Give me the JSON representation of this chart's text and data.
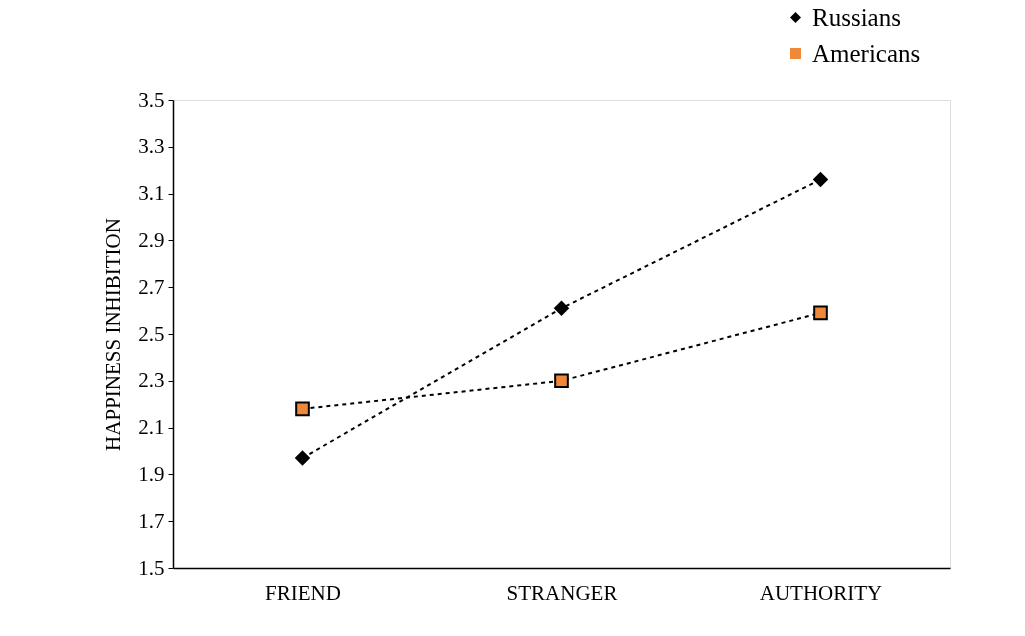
{
  "chart_data": {
    "type": "line",
    "ylabel": "HAPPINESS INHIBITION",
    "categories": [
      "FRIEND",
      "STRANGER",
      "AUTHORITY"
    ],
    "series": [
      {
        "name": "Russians",
        "color": "#000000",
        "marker": "diamond",
        "values": [
          1.97,
          2.61,
          3.16
        ]
      },
      {
        "name": "Americans",
        "color": "#f0883a",
        "marker": "square",
        "values": [
          2.18,
          2.3,
          2.59
        ]
      }
    ],
    "ylim": [
      1.5,
      3.5
    ],
    "yticks": [
      1.5,
      1.7,
      1.9,
      2.1,
      2.3,
      2.5,
      2.7,
      2.9,
      3.1,
      3.3,
      3.5
    ],
    "grid": false,
    "legend": "top right",
    "line_style": "dashed"
  }
}
